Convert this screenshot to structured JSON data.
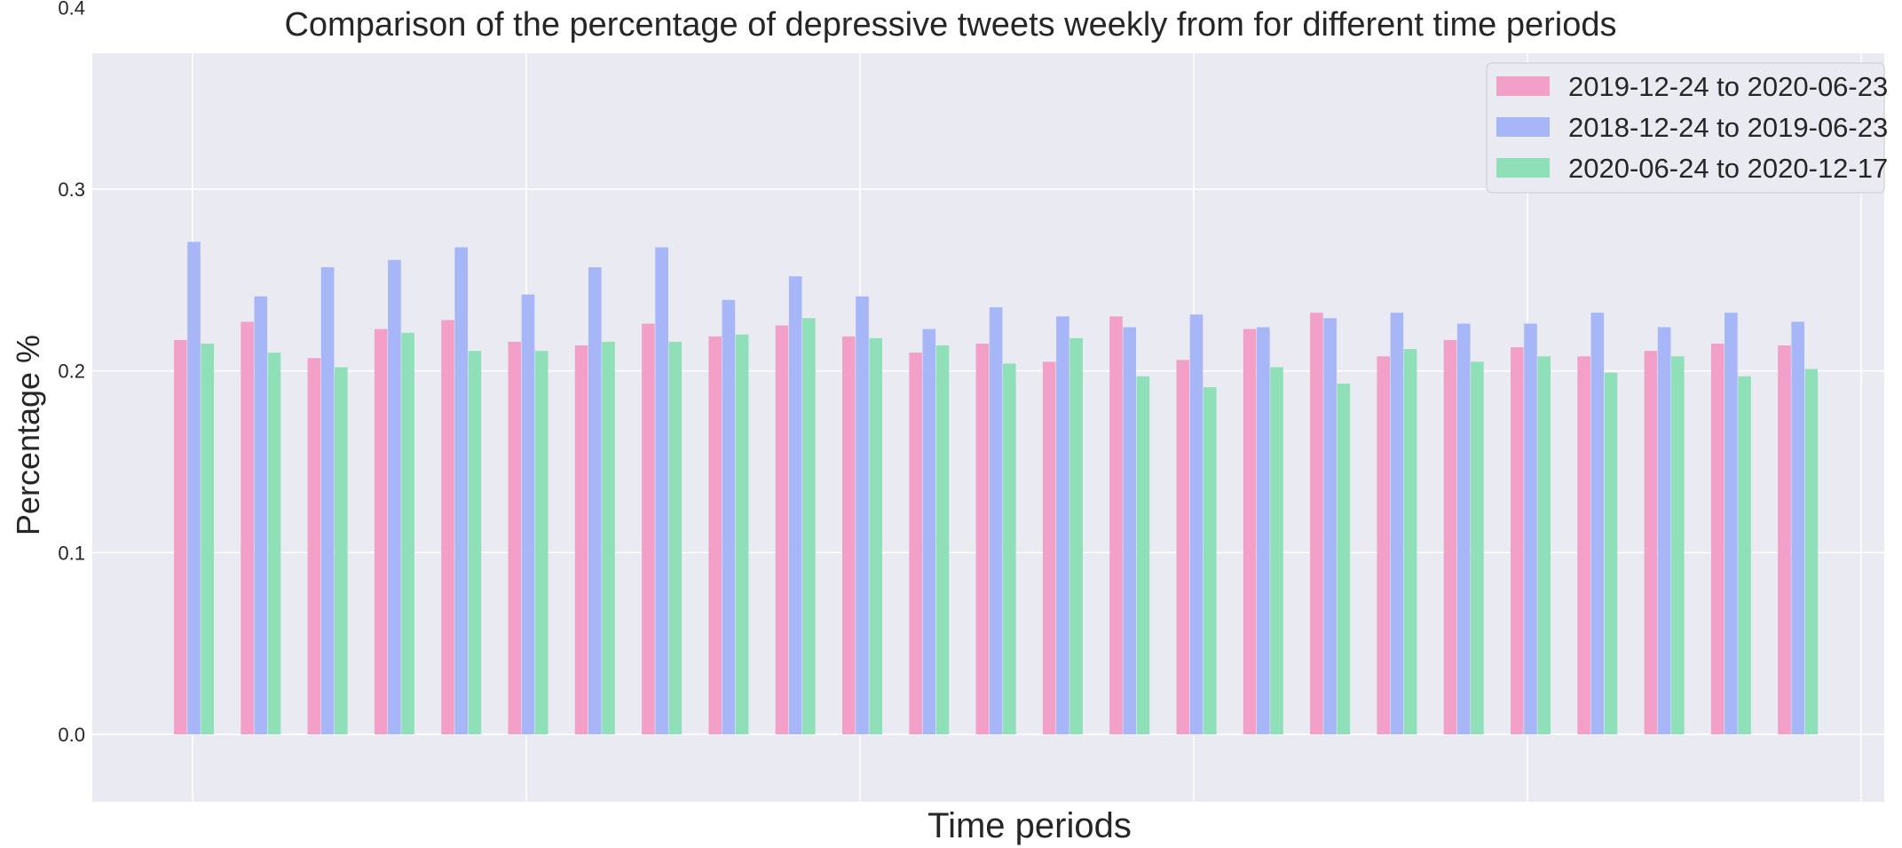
{
  "chart_data": {
    "type": "bar",
    "title": "Comparison of the percentage of depressive tweets weekly from for different time periods",
    "xlabel": "Time periods",
    "ylabel": "Percentage %",
    "ylim": [
      -0.05,
      0.5
    ],
    "yticks": [
      "0.0",
      "0.1",
      "0.2",
      "0.3",
      "0.4",
      "0.5"
    ],
    "grid": true,
    "legend_position": "top-right",
    "categories_count": 25,
    "series": [
      {
        "name": "2019-12-24 to 2020-06-23",
        "color": "#f2a0c8",
        "values": [
          0.217,
          0.227,
          0.207,
          0.223,
          0.228,
          0.216,
          0.214,
          0.226,
          0.219,
          0.225,
          0.219,
          0.21,
          0.215,
          0.205,
          0.23,
          0.206,
          0.223,
          0.232,
          0.208,
          0.217,
          0.213,
          0.208,
          0.211,
          0.215,
          0.214
        ]
      },
      {
        "name": "2018-12-24 to 2019-06-23",
        "color": "#a6b6f6",
        "values": [
          0.271,
          0.241,
          0.257,
          0.261,
          0.268,
          0.242,
          0.257,
          0.268,
          0.239,
          0.252,
          0.241,
          0.223,
          0.235,
          0.23,
          0.224,
          0.231,
          0.224,
          0.229,
          0.232,
          0.226,
          0.226,
          0.232,
          0.224,
          0.232,
          0.227
        ]
      },
      {
        "name": "2020-06-24 to 2020-12-17",
        "color": "#8fdfb8",
        "values": [
          0.215,
          0.21,
          0.202,
          0.221,
          0.211,
          0.211,
          0.216,
          0.216,
          0.22,
          0.229,
          0.218,
          0.214,
          0.204,
          0.218,
          0.197,
          0.191,
          0.202,
          0.193,
          0.212,
          0.205,
          0.208,
          0.199,
          0.208,
          0.197,
          0.201
        ]
      }
    ]
  }
}
